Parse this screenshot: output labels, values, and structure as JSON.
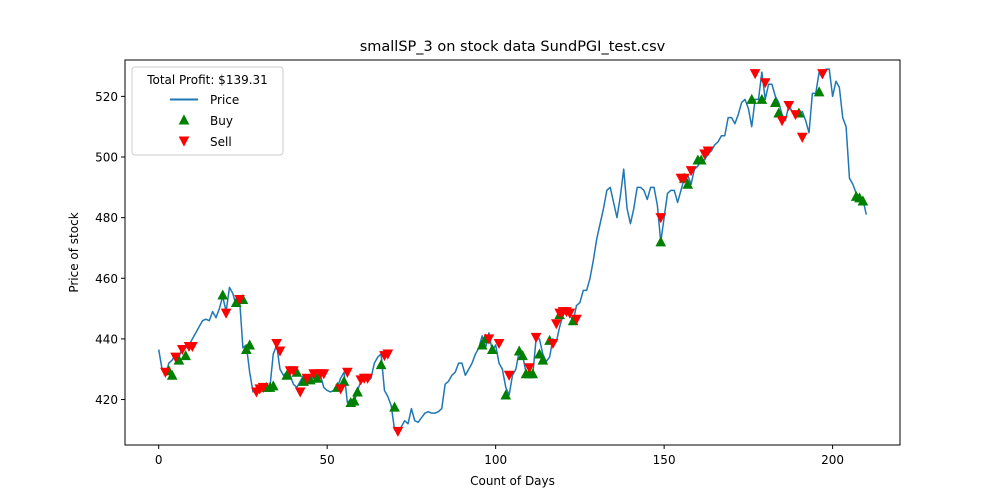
{
  "chart_data": {
    "type": "line",
    "title": "smallSP_3 on stock data SundPGI_test.csv",
    "xlabel": "Count of Days",
    "ylabel": "Price of stock",
    "xlim": [
      -10,
      220
    ],
    "ylim": [
      405,
      532
    ],
    "xticks": [
      0,
      50,
      100,
      150,
      200
    ],
    "yticks": [
      420,
      440,
      460,
      480,
      500,
      520
    ],
    "grid": false,
    "legend": {
      "placement": "top-left",
      "title": "Total Profit: $139.31",
      "entries": [
        "Price",
        "Buy",
        "Sell"
      ]
    },
    "colors": {
      "price": "#1f77b4",
      "buy": "#008000",
      "sell": "#ff0000"
    },
    "series": [
      {
        "name": "Price",
        "x": [
          0,
          1,
          2,
          3,
          4,
          5,
          6,
          7,
          8,
          9,
          10,
          11,
          12,
          13,
          14,
          15,
          16,
          17,
          18,
          19,
          20,
          21,
          22,
          23,
          24,
          25,
          26,
          27,
          28,
          29,
          30,
          31,
          32,
          33,
          34,
          35,
          36,
          37,
          38,
          39,
          40,
          41,
          42,
          43,
          44,
          45,
          46,
          47,
          48,
          49,
          50,
          51,
          52,
          53,
          54,
          55,
          56,
          57,
          58,
          59,
          60,
          61,
          62,
          63,
          64,
          65,
          66,
          67,
          68,
          69,
          70,
          71,
          72,
          73,
          74,
          75,
          76,
          77,
          78,
          79,
          80,
          81,
          82,
          83,
          84,
          85,
          86,
          87,
          88,
          89,
          90,
          91,
          92,
          93,
          94,
          95,
          96,
          97,
          98,
          99,
          100,
          101,
          102,
          103,
          104,
          105,
          106,
          107,
          108,
          109,
          110,
          111,
          112,
          113,
          114,
          115,
          116,
          117,
          118,
          119,
          120,
          121,
          122,
          123,
          124,
          125,
          126,
          127,
          128,
          129,
          130,
          131,
          132,
          133,
          134,
          135,
          136,
          137,
          138,
          139,
          140,
          141,
          142,
          143,
          144,
          145,
          146,
          147,
          148,
          149,
          150,
          151,
          152,
          153,
          154,
          155,
          156,
          157,
          158,
          159,
          160,
          161,
          162,
          163,
          164,
          165,
          166,
          167,
          168,
          169,
          170,
          171,
          172,
          173,
          174,
          175,
          176,
          177,
          178,
          179,
          180,
          181,
          182,
          183,
          184,
          185,
          186,
          187,
          188,
          189,
          190,
          191,
          192,
          193,
          194,
          195,
          196,
          197,
          198,
          199,
          200,
          201,
          202,
          203,
          204,
          205,
          206,
          207,
          208,
          209,
          210
        ],
        "values": [
          436.5,
          430,
          428,
          432,
          433,
          435,
          434,
          437,
          437,
          438,
          440,
          442,
          444,
          446,
          446.5,
          446,
          449,
          447,
          450,
          454,
          449,
          457,
          455,
          451,
          453,
          437,
          438,
          429,
          422.5,
          424,
          425,
          423.5,
          424,
          424,
          435,
          438,
          430,
          428,
          429,
          428,
          425,
          424,
          426,
          428,
          426,
          428,
          427,
          428,
          428,
          424,
          423,
          422.5,
          423,
          424,
          427,
          429,
          419,
          420,
          419,
          423,
          426,
          427,
          426,
          427,
          432,
          434,
          435,
          423,
          421,
          418,
          410,
          409.5,
          411,
          413,
          412,
          417,
          413,
          412.5,
          414,
          415.5,
          416,
          415.5,
          415.5,
          416,
          417,
          425,
          426,
          428,
          429,
          432,
          432,
          428,
          430,
          432,
          435,
          437,
          441,
          437,
          442,
          436,
          438,
          432,
          430,
          424,
          421.5,
          428,
          430,
          436,
          434.5,
          429,
          428.5,
          428,
          440,
          440,
          435,
          432.5,
          434,
          440,
          439,
          444,
          448,
          449.5,
          448,
          446,
          451,
          452,
          456,
          456,
          460,
          466,
          473,
          478,
          483,
          489,
          490,
          485,
          480,
          487,
          496,
          483,
          478,
          483,
          490,
          490,
          489,
          486,
          490,
          490,
          484,
          472,
          480,
          488,
          489,
          489,
          485,
          489,
          493,
          494,
          491,
          496,
          497,
          499,
          499,
          501,
          502,
          504,
          505,
          507,
          507,
          513,
          513,
          511,
          514,
          518,
          519,
          516,
          510,
          519,
          519,
          528,
          519,
          524,
          524,
          520,
          518,
          514,
          512,
          517,
          515,
          514,
          514,
          515,
          512,
          508,
          521,
          521,
          528,
          526,
          529,
          529,
          520,
          525,
          523,
          513,
          510,
          493,
          491,
          488,
          487,
          486,
          481
        ]
      },
      {
        "name": "Buy",
        "x": [
          3,
          4,
          6,
          8,
          19,
          23,
          25,
          26,
          27,
          32,
          33,
          34,
          38,
          41,
          43,
          45,
          47,
          53,
          55,
          57,
          58,
          59,
          66,
          70,
          96,
          97,
          99,
          103,
          107,
          108,
          109,
          110,
          111,
          113,
          114,
          116,
          119,
          123,
          149,
          156,
          157,
          160,
          161,
          176,
          179,
          183,
          184,
          190,
          196,
          207,
          208,
          209
        ],
        "values": [
          429.5,
          428,
          433,
          434.5,
          454.5,
          452,
          453,
          436.5,
          438,
          424,
          424,
          424.5,
          428,
          429,
          426,
          426.5,
          427,
          424,
          426,
          419,
          419.5,
          422.5,
          431.5,
          417.5,
          438,
          440,
          436.5,
          421.5,
          436,
          434.5,
          428.5,
          428.5,
          428.5,
          435,
          433,
          439.5,
          448,
          446,
          472,
          493,
          491,
          499,
          499,
          519,
          519,
          518,
          514.5,
          514.5,
          521.5,
          487,
          486.5,
          485.5
        ]
      },
      {
        "name": "Sell",
        "x": [
          2,
          5,
          7,
          9,
          10,
          20,
          24,
          29,
          30,
          31,
          35,
          36,
          39,
          40,
          42,
          44,
          46,
          48,
          49,
          54,
          56,
          60,
          61,
          62,
          67,
          68,
          71,
          98,
          101,
          104,
          110,
          112,
          117,
          118,
          119,
          120,
          121,
          122,
          124,
          149,
          155,
          156,
          158,
          162,
          163,
          177,
          180,
          185,
          187,
          189,
          191,
          197
        ],
        "values": [
          429,
          434,
          436.5,
          437.5,
          437.5,
          448.5,
          453,
          422.5,
          423.5,
          424,
          438.5,
          436,
          429.5,
          429.5,
          422.5,
          427,
          428.5,
          428.5,
          428.5,
          423.5,
          429,
          426.5,
          427,
          427,
          434.5,
          435,
          409.5,
          440,
          438.5,
          428,
          430.5,
          440.5,
          438.5,
          445,
          448.5,
          449,
          449,
          448.5,
          446.5,
          480,
          493,
          493,
          495.5,
          501,
          502,
          527.5,
          524.5,
          512,
          517,
          514,
          506.5,
          527.5
        ]
      }
    ]
  }
}
